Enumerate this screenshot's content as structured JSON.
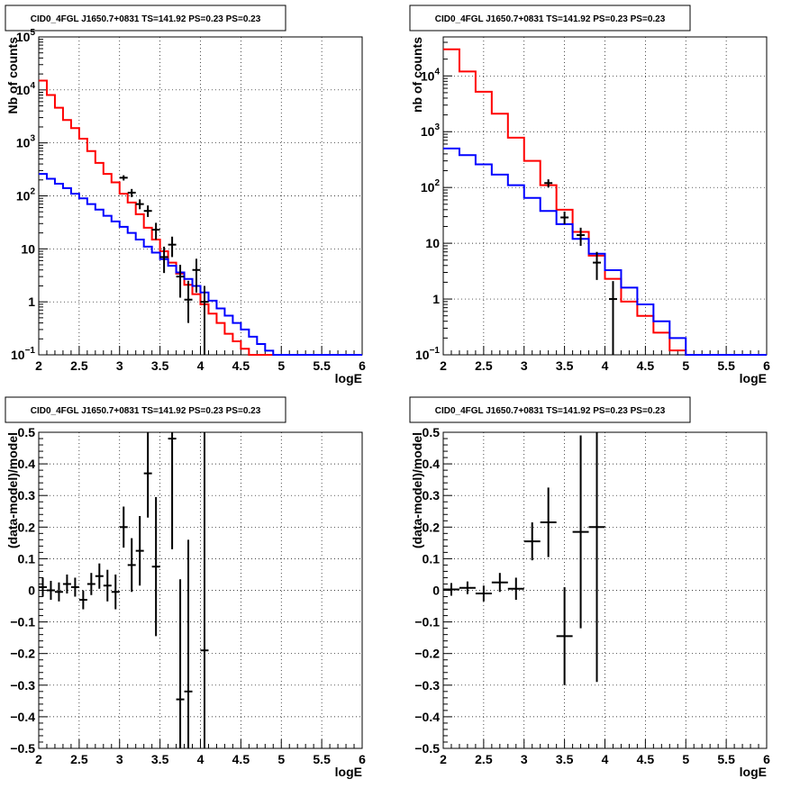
{
  "chart_data": [
    {
      "type": "line",
      "title": "CID0_4FGL J1650.7+0831 TS=141.92 PS=0.23 PS=0.23",
      "xlabel": "logE",
      "ylabel": "Nb of counts",
      "xlim": [
        2,
        6
      ],
      "ylim": [
        0.1,
        100000
      ],
      "yscale": "log",
      "grid": true,
      "x_ticks": [
        "2",
        "2.5",
        "3",
        "3.5",
        "4",
        "4.5",
        "5",
        "5.5",
        "6"
      ],
      "y_ticks": [
        {
          "v": 0.1,
          "base": "10",
          "exp": "−1"
        },
        {
          "v": 1,
          "label": "1"
        },
        {
          "v": 10,
          "label": "10"
        },
        {
          "v": 100,
          "base": "10",
          "exp": "2"
        },
        {
          "v": 1000,
          "base": "10",
          "exp": "3"
        },
        {
          "v": 10000,
          "base": "10",
          "exp": "4"
        },
        {
          "v": 100000,
          "base": "10",
          "exp": "5"
        }
      ],
      "bin_edges": [
        2.0,
        2.1,
        2.2,
        2.3,
        2.4,
        2.5,
        2.6,
        2.7,
        2.8,
        2.9,
        3.0,
        3.1,
        3.2,
        3.3,
        3.4,
        3.5,
        3.6,
        3.7,
        3.8,
        3.9,
        4.0,
        4.1,
        4.2,
        4.3,
        4.4,
        4.5,
        4.6,
        4.7,
        4.8,
        4.9,
        5.0,
        5.1,
        5.2,
        5.3,
        5.4,
        5.5,
        5.6,
        5.7,
        5.8,
        5.9,
        6.0
      ],
      "series": [
        {
          "color": "#ff0000",
          "values": [
            15000,
            8000,
            4600,
            2700,
            1900,
            1200,
            700,
            420,
            260,
            180,
            110,
            75,
            45,
            25,
            15,
            9,
            5.5,
            3.4,
            2.1,
            1.4,
            0.9,
            0.6,
            0.4,
            0.25,
            0.18,
            0.13,
            0.1,
            0.1,
            0.1,
            0.1,
            0.1,
            0.1,
            0.1,
            0.1,
            0.1,
            0.1,
            0.1,
            0.1,
            0.1,
            0.1
          ]
        },
        {
          "color": "#0000ff",
          "values": [
            260,
            210,
            170,
            140,
            110,
            90,
            70,
            55,
            42,
            33,
            26,
            20,
            15,
            11,
            8.5,
            6.4,
            4.8,
            3.6,
            2.7,
            2,
            1.5,
            1.05,
            0.75,
            0.55,
            0.4,
            0.3,
            0.22,
            0.16,
            0.12,
            0.1,
            0.1,
            0.1,
            0.1,
            0.1,
            0.1,
            0.1,
            0.1,
            0.1,
            0.1,
            0.1
          ]
        }
      ],
      "data_points": [
        {
          "x": 3.05,
          "y": 220,
          "ylo": 195,
          "yhi": 245
        },
        {
          "x": 3.15,
          "y": 115,
          "ylo": 95,
          "yhi": 135
        },
        {
          "x": 3.25,
          "y": 70,
          "ylo": 56,
          "yhi": 86
        },
        {
          "x": 3.35,
          "y": 52,
          "ylo": 40,
          "yhi": 66
        },
        {
          "x": 3.45,
          "y": 23,
          "ylo": 15,
          "yhi": 31
        },
        {
          "x": 3.55,
          "y": 7,
          "ylo": 3.5,
          "yhi": 11
        },
        {
          "x": 3.65,
          "y": 12,
          "ylo": 7,
          "yhi": 17
        },
        {
          "x": 3.75,
          "y": 3,
          "ylo": 1.2,
          "yhi": 5
        },
        {
          "x": 3.85,
          "y": 1.1,
          "ylo": 0.4,
          "yhi": 2.5
        },
        {
          "x": 3.95,
          "y": 4,
          "ylo": 1.5,
          "yhi": 6.5
        },
        {
          "x": 4.05,
          "y": 1,
          "ylo": 0.1,
          "yhi": 2.0
        }
      ]
    },
    {
      "type": "line",
      "title": "CID0_4FGL J1650.7+0831 TS=141.92 PS=0.23 PS=0.23",
      "xlabel": "logE",
      "ylabel": "nb of counts",
      "xlim": [
        2,
        6
      ],
      "ylim": [
        0.1,
        50000
      ],
      "yscale": "log",
      "grid": true,
      "x_ticks": [
        "2",
        "2.5",
        "3",
        "3.5",
        "4",
        "4.5",
        "5",
        "5.5",
        "6"
      ],
      "y_ticks": [
        {
          "v": 0.1,
          "base": "10",
          "exp": "−1"
        },
        {
          "v": 1,
          "label": "1"
        },
        {
          "v": 10,
          "label": "10"
        },
        {
          "v": 100,
          "base": "10",
          "exp": "2"
        },
        {
          "v": 1000,
          "base": "10",
          "exp": "3"
        },
        {
          "v": 10000,
          "base": "10",
          "exp": "4"
        }
      ],
      "bin_edges": [
        2.0,
        2.2,
        2.4,
        2.6,
        2.8,
        3.0,
        3.2,
        3.4,
        3.6,
        3.8,
        4.0,
        4.2,
        4.4,
        4.6,
        4.8,
        5.0,
        5.2,
        5.4,
        5.6,
        5.8,
        6.0
      ],
      "series": [
        {
          "color": "#ff0000",
          "values": [
            30000,
            12000,
            5200,
            2100,
            780,
            300,
            110,
            40,
            16,
            6,
            2.3,
            0.9,
            0.5,
            0.25,
            0.12,
            0.1,
            0.1,
            0.1,
            0.1,
            0.1
          ]
        },
        {
          "color": "#0000ff",
          "values": [
            500,
            380,
            260,
            170,
            110,
            65,
            38,
            22,
            12,
            6.5,
            3.3,
            1.6,
            0.8,
            0.4,
            0.2,
            0.1,
            0.1,
            0.1,
            0.1,
            0.1
          ]
        }
      ],
      "data_points": [
        {
          "x": 3.3,
          "y": 120,
          "ylo": 100,
          "yhi": 140
        },
        {
          "x": 3.5,
          "y": 29,
          "ylo": 22,
          "yhi": 37
        },
        {
          "x": 3.7,
          "y": 14,
          "ylo": 9,
          "yhi": 19
        },
        {
          "x": 3.9,
          "y": 4.5,
          "ylo": 2.2,
          "yhi": 7
        },
        {
          "x": 4.1,
          "y": 1,
          "ylo": 0.1,
          "yhi": 2.1
        }
      ]
    },
    {
      "type": "scatter",
      "title": "CID0_4FGL J1650.7+0831 TS=141.92 PS=0.23 PS=0.23",
      "xlabel": "logE",
      "ylabel": "(data-model)/model",
      "xlim": [
        2,
        6
      ],
      "ylim": [
        -0.5,
        0.5
      ],
      "grid": true,
      "x_ticks": [
        "2",
        "2.5",
        "3",
        "3.5",
        "4",
        "4.5",
        "5",
        "5.5",
        "6"
      ],
      "y_ticks": [
        "−0.5",
        "−0.4",
        "−0.3",
        "−0.2",
        "−0.1",
        "0",
        "0.1",
        "0.2",
        "0.3",
        "0.4",
        "0.5"
      ],
      "half_width": 0.05,
      "data_points": [
        {
          "x": 2.05,
          "y": 0.01,
          "err": 0.03
        },
        {
          "x": 2.15,
          "y": 0.0,
          "err": 0.03
        },
        {
          "x": 2.25,
          "y": -0.005,
          "err": 0.03
        },
        {
          "x": 2.35,
          "y": 0.02,
          "err": 0.03
        },
        {
          "x": 2.45,
          "y": 0.01,
          "err": 0.03
        },
        {
          "x": 2.55,
          "y": -0.03,
          "err": 0.03
        },
        {
          "x": 2.65,
          "y": 0.02,
          "err": 0.035
        },
        {
          "x": 2.75,
          "y": 0.045,
          "err": 0.04
        },
        {
          "x": 2.85,
          "y": 0.015,
          "err": 0.05
        },
        {
          "x": 2.95,
          "y": -0.005,
          "err": 0.055
        },
        {
          "x": 3.05,
          "y": 0.2,
          "err": 0.065
        },
        {
          "x": 3.15,
          "y": 0.08,
          "err": 0.085
        },
        {
          "x": 3.25,
          "y": 0.125,
          "err": 0.11
        },
        {
          "x": 3.35,
          "y": 0.37,
          "err": 0.14
        },
        {
          "x": 3.45,
          "y": 0.075,
          "err": 0.22
        },
        {
          "x": 3.65,
          "y": 0.48,
          "err": 0.35
        },
        {
          "x": 3.75,
          "y": -0.345,
          "err": 0.38
        },
        {
          "x": 3.85,
          "y": -0.32,
          "err": 0.48
        },
        {
          "x": 4.05,
          "y": -0.19,
          "err": 1.0
        }
      ]
    },
    {
      "type": "scatter",
      "title": "CID0_4FGL J1650.7+0831 TS=141.92 PS=0.23 PS=0.23",
      "xlabel": "logE",
      "ylabel": "(data-model)/model",
      "xlim": [
        2,
        6
      ],
      "ylim": [
        -0.5,
        0.5
      ],
      "grid": true,
      "x_ticks": [
        "2",
        "2.5",
        "3",
        "3.5",
        "4",
        "4.5",
        "5",
        "5.5",
        "6"
      ],
      "y_ticks": [
        "−0.5",
        "−0.4",
        "−0.3",
        "−0.2",
        "−0.1",
        "0",
        "0.1",
        "0.2",
        "0.3",
        "0.4",
        "0.5"
      ],
      "half_width": 0.1,
      "data_points": [
        {
          "x": 2.1,
          "y": 0.003,
          "err": 0.02
        },
        {
          "x": 2.3,
          "y": 0.008,
          "err": 0.02
        },
        {
          "x": 2.5,
          "y": -0.01,
          "err": 0.025
        },
        {
          "x": 2.7,
          "y": 0.025,
          "err": 0.03
        },
        {
          "x": 2.9,
          "y": 0.005,
          "err": 0.035
        },
        {
          "x": 3.1,
          "y": 0.155,
          "err": 0.06
        },
        {
          "x": 3.3,
          "y": 0.215,
          "err": 0.11
        },
        {
          "x": 3.5,
          "y": -0.145,
          "err": 0.155
        },
        {
          "x": 3.7,
          "y": 0.185,
          "err": 0.305
        },
        {
          "x": 3.9,
          "y": 0.2,
          "err": 0.49
        }
      ]
    }
  ]
}
